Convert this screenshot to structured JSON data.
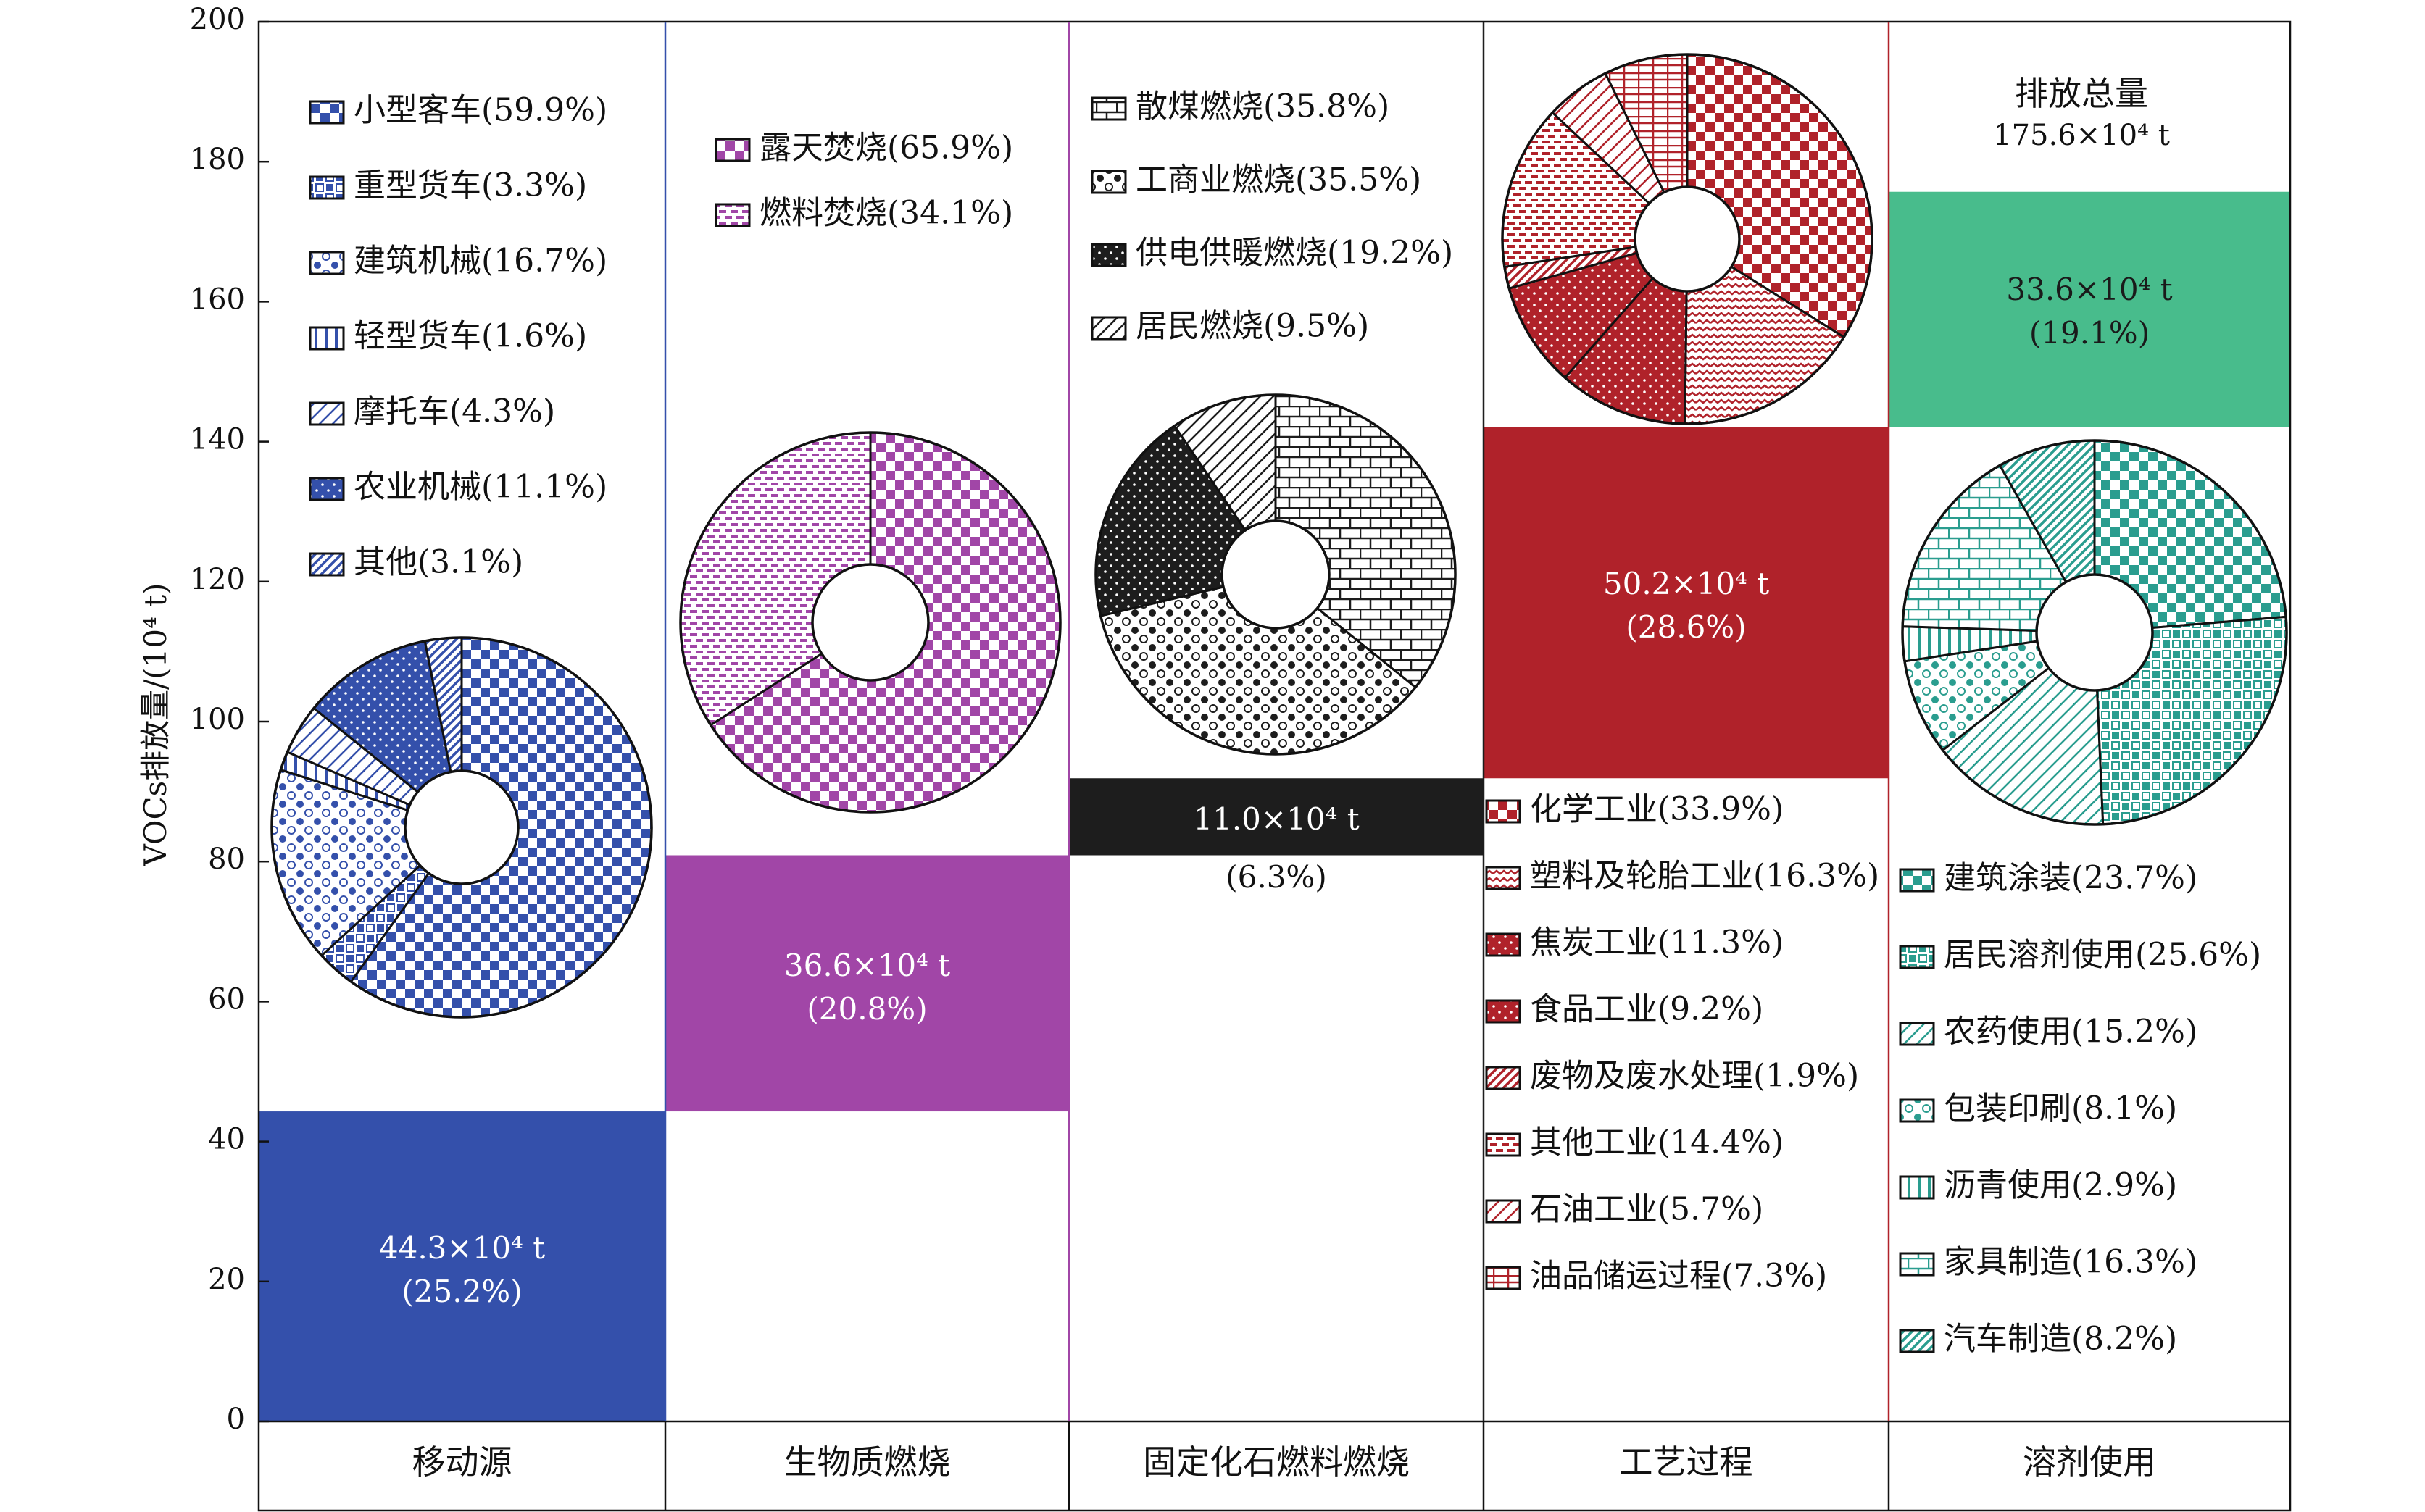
{
  "chart_data": {
    "type": "bar",
    "title": "",
    "ylabel": "VOCs排放量/(10⁴ t)",
    "ylim": [
      0,
      200
    ],
    "yticks": [
      0,
      20,
      40,
      60,
      80,
      100,
      120,
      140,
      160,
      180,
      200
    ],
    "categories": [
      "移动源",
      "生物质燃烧",
      "固定化石燃料燃烧",
      "工艺过程",
      "溶剂使用"
    ],
    "bars": [
      {
        "base": 0,
        "value": 44.3,
        "label": "44.3×10⁴ t",
        "share": "(25.2%)",
        "color": "#3450ab",
        "label_color": "#ffffff"
      },
      {
        "base": 44.3,
        "value": 36.6,
        "label": "36.6×10⁴ t",
        "share": "(20.8%)",
        "color": "#a146a7",
        "label_color": "#ffffff"
      },
      {
        "base": 80.9,
        "value": 11.0,
        "label": "11.0×10⁴ t",
        "share": "(6.3%)",
        "color": "#1d1d1d",
        "label_color": "#ffffff"
      },
      {
        "base": 91.9,
        "value": 50.2,
        "label": "50.2×10⁴ t",
        "share": "(28.6%)",
        "color": "#b0222a",
        "label_color": "#ffffff"
      },
      {
        "base": 142.1,
        "value": 33.6,
        "label": "33.6×10⁴ t",
        "share": "(19.1%)",
        "color": "#48bc8c",
        "label_color": "#1a1a1a"
      }
    ],
    "total": {
      "label": "排放总量",
      "value": "175.6×10⁴ t"
    },
    "panel_divider_colors": [
      "#3450ab",
      "#a146a7",
      "#1d1d1d",
      "#b0222a"
    ],
    "donuts": [
      {
        "category": "移动源",
        "color": "#3450ab",
        "slices": [
          {
            "name": "小型客车(59.9%)",
            "value": 59.9,
            "pattern": "checker"
          },
          {
            "name": "重型货车(3.3%)",
            "value": 3.3,
            "pattern": "bigchecker"
          },
          {
            "name": "建筑机械(16.7%)",
            "value": 16.7,
            "pattern": "circles"
          },
          {
            "name": "轻型货车(1.6%)",
            "value": 1.6,
            "pattern": "vlines"
          },
          {
            "name": "摩托车(4.3%)",
            "value": 4.3,
            "pattern": "diag"
          },
          {
            "name": "农业机械(11.1%)",
            "value": 11.1,
            "pattern": "dots"
          },
          {
            "name": "其他(3.1%)",
            "value": 3.1,
            "pattern": "diagdense"
          }
        ]
      },
      {
        "category": "生物质燃烧",
        "color": "#a146a7",
        "slices": [
          {
            "name": "露天焚烧(65.9%)",
            "value": 65.9,
            "pattern": "checker"
          },
          {
            "name": "燃料焚烧(34.1%)",
            "value": 34.1,
            "pattern": "hdash"
          }
        ]
      },
      {
        "category": "固定化石燃料燃烧",
        "color": "#1d1d1d",
        "slices": [
          {
            "name": "散煤燃烧(35.8%)",
            "value": 35.8,
            "pattern": "brick"
          },
          {
            "name": "工商业燃烧(35.5%)",
            "value": 35.5,
            "pattern": "circles"
          },
          {
            "name": "供电供暖燃烧(19.2%)",
            "value": 19.2,
            "pattern": "dots"
          },
          {
            "name": "居民燃烧(9.5%)",
            "value": 9.5,
            "pattern": "diag"
          }
        ]
      },
      {
        "category": "工艺过程",
        "color": "#b0222a",
        "slices": [
          {
            "name": "化学工业(33.9%)",
            "value": 33.9,
            "pattern": "checker"
          },
          {
            "name": "塑料及轮胎工业(16.3%)",
            "value": 16.3,
            "pattern": "zigzag"
          },
          {
            "name": "焦炭工业(11.3%)",
            "value": 11.3,
            "pattern": "dots"
          },
          {
            "name": "食品工业(9.2%)",
            "value": 9.2,
            "pattern": "dots"
          },
          {
            "name": "废物及废水处理(1.9%)",
            "value": 1.9,
            "pattern": "diagdense"
          },
          {
            "name": "其他工业(14.4%)",
            "value": 14.4,
            "pattern": "hdash"
          },
          {
            "name": "石油工业(5.7%)",
            "value": 5.7,
            "pattern": "diag"
          },
          {
            "name": "油品储运过程(7.3%)",
            "value": 7.3,
            "pattern": "grid"
          }
        ]
      },
      {
        "category": "溶剂使用",
        "color": "#2a9d8f",
        "slices": [
          {
            "name": "建筑涂装(23.7%)",
            "value": 23.7,
            "pattern": "checker"
          },
          {
            "name": "居民溶剂使用(25.6%)",
            "value": 25.6,
            "pattern": "bigchecker"
          },
          {
            "name": "农药使用(15.2%)",
            "value": 15.2,
            "pattern": "diag"
          },
          {
            "name": "包装印刷(8.1%)",
            "value": 8.1,
            "pattern": "circles"
          },
          {
            "name": "沥青使用(2.9%)",
            "value": 2.9,
            "pattern": "vlines"
          },
          {
            "name": "家具制造(16.3%)",
            "value": 16.3,
            "pattern": "brick"
          },
          {
            "name": "汽车制造(8.2%)",
            "value": 8.2,
            "pattern": "diagdense"
          }
        ]
      }
    ]
  }
}
